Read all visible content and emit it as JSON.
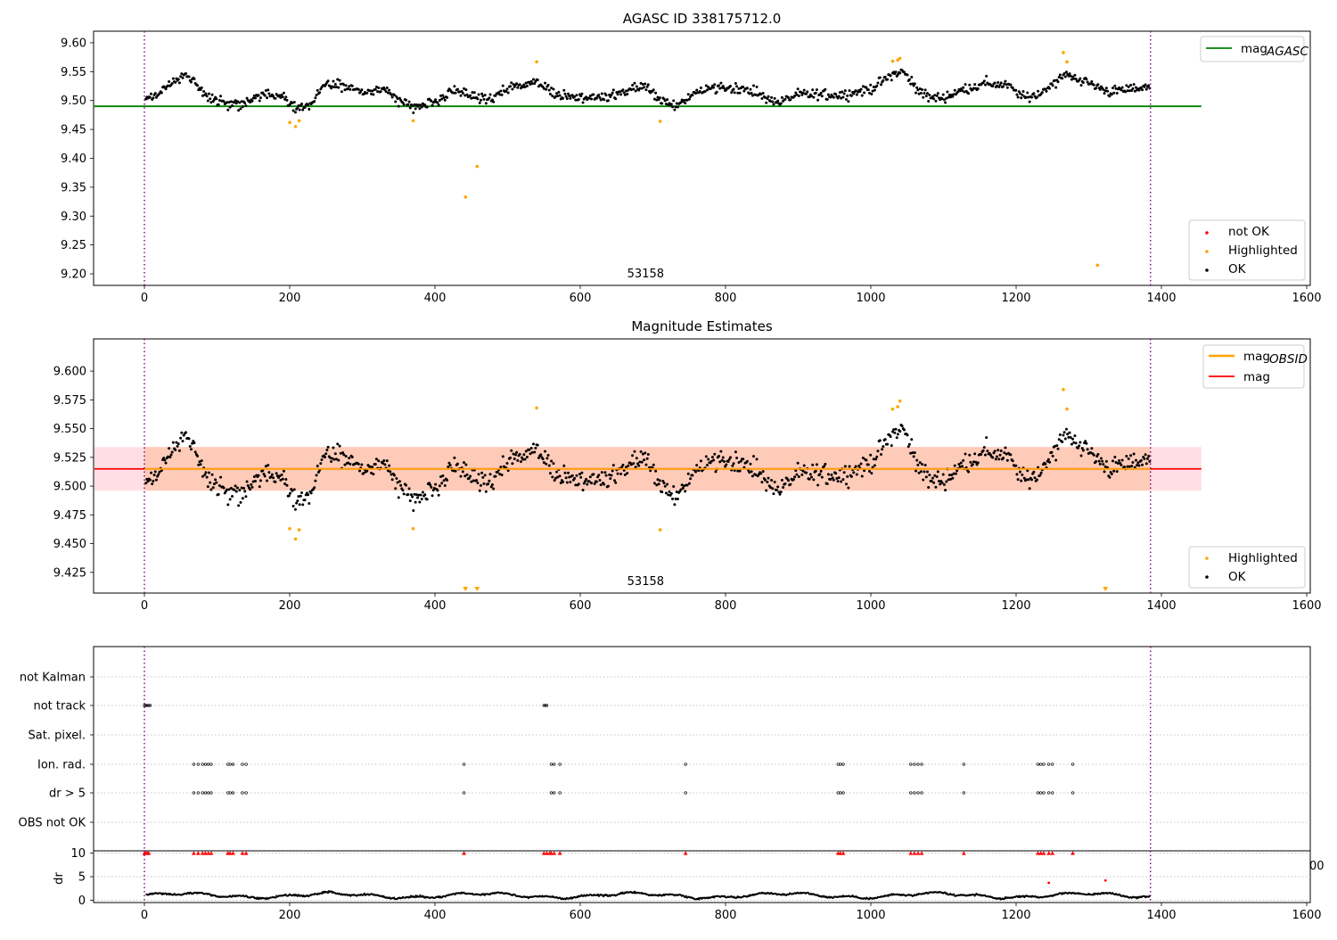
{
  "chart_data": [
    {
      "type": "scatter",
      "title": "AGASC ID 338175712.0",
      "xlim": [
        -70,
        1600
      ],
      "ylim": [
        9.18,
        9.62
      ],
      "xticks": [
        "0",
        "200",
        "400",
        "600",
        "800",
        "1000",
        "1200",
        "1400",
        "1600"
      ],
      "yticks": [
        "9.20",
        "9.25",
        "9.30",
        "9.35",
        "9.40",
        "9.45",
        "9.50",
        "9.55",
        "9.60"
      ],
      "obsid_label": "53158",
      "obsid_x": 690,
      "vlines": [
        0,
        1385
      ],
      "reference_line": {
        "name": "mag",
        "subscript": "AGASC",
        "value": 9.49,
        "x_range": [
          -70,
          1455
        ],
        "color": "#008000"
      },
      "series": [
        {
          "name": "not OK",
          "color": "#ff0000",
          "points": []
        },
        {
          "name": "Highlighted",
          "color": "#ffa500",
          "points": [
            [
              200,
              9.462
            ],
            [
              208,
              9.455
            ],
            [
              213,
              9.465
            ],
            [
              370,
              9.465
            ],
            [
              442,
              9.333
            ],
            [
              458,
              9.386
            ],
            [
              540,
              9.567
            ],
            [
              710,
              9.464
            ],
            [
              1030,
              9.568
            ],
            [
              1037,
              9.57
            ],
            [
              1040,
              9.573
            ],
            [
              1265,
              9.583
            ],
            [
              1270,
              9.567
            ],
            [
              1312,
              9.215
            ]
          ]
        },
        {
          "name": "OK",
          "color": "#000000",
          "description_only_first_points_listed": false
        }
      ],
      "ok_trend": [
        [
          0,
          9.5
        ],
        [
          20,
          9.51
        ],
        [
          40,
          9.535
        ],
        [
          55,
          9.545
        ],
        [
          70,
          9.53
        ],
        [
          90,
          9.505
        ],
        [
          110,
          9.495
        ],
        [
          130,
          9.49
        ],
        [
          160,
          9.51
        ],
        [
          190,
          9.505
        ],
        [
          210,
          9.485
        ],
        [
          230,
          9.495
        ],
        [
          250,
          9.53
        ],
        [
          270,
          9.525
        ],
        [
          300,
          9.515
        ],
        [
          330,
          9.52
        ],
        [
          350,
          9.5
        ],
        [
          370,
          9.49
        ],
        [
          400,
          9.495
        ],
        [
          420,
          9.515
        ],
        [
          440,
          9.51
        ],
        [
          460,
          9.505
        ],
        [
          480,
          9.505
        ],
        [
          500,
          9.52
        ],
        [
          530,
          9.53
        ],
        [
          550,
          9.525
        ],
        [
          570,
          9.51
        ],
        [
          600,
          9.505
        ],
        [
          630,
          9.505
        ],
        [
          660,
          9.515
        ],
        [
          690,
          9.525
        ],
        [
          710,
          9.5
        ],
        [
          730,
          9.49
        ],
        [
          760,
          9.515
        ],
        [
          790,
          9.525
        ],
        [
          820,
          9.52
        ],
        [
          850,
          9.51
        ],
        [
          870,
          9.495
        ],
        [
          900,
          9.51
        ],
        [
          930,
          9.51
        ],
        [
          960,
          9.51
        ],
        [
          980,
          9.515
        ],
        [
          1000,
          9.52
        ],
        [
          1030,
          9.545
        ],
        [
          1045,
          9.55
        ],
        [
          1060,
          9.525
        ],
        [
          1080,
          9.505
        ],
        [
          1100,
          9.505
        ],
        [
          1130,
          9.52
        ],
        [
          1160,
          9.53
        ],
        [
          1190,
          9.525
        ],
        [
          1210,
          9.505
        ],
        [
          1230,
          9.51
        ],
        [
          1250,
          9.53
        ],
        [
          1270,
          9.545
        ],
        [
          1300,
          9.53
        ],
        [
          1330,
          9.515
        ],
        [
          1360,
          9.52
        ],
        [
          1385,
          9.525
        ]
      ],
      "legend_placement_top": "upper right",
      "legend_placement_bottom": "lower right"
    },
    {
      "type": "scatter",
      "title": "Magnitude Estimates",
      "xlim": [
        -70,
        1600
      ],
      "ylim": [
        9.407,
        9.628
      ],
      "xticks": [
        "0",
        "200",
        "400",
        "600",
        "800",
        "1000",
        "1200",
        "1400",
        "1600"
      ],
      "yticks": [
        "9.425",
        "9.450",
        "9.475",
        "9.500",
        "9.525",
        "9.550",
        "9.575",
        "9.600"
      ],
      "obsid_label": "53158",
      "obsid_x": 690,
      "vlines": [
        0,
        1385
      ],
      "mag_line": {
        "name": "mag",
        "value": 9.515,
        "color": "#ff0000"
      },
      "mag_obsid": {
        "name": "mag",
        "subscript": "OBSID",
        "value": 9.515,
        "band": [
          9.496,
          9.534
        ],
        "color": "#ffa500"
      },
      "band_total": [
        9.496,
        9.534
      ],
      "highlighted_points": [
        [
          200,
          9.463
        ],
        [
          208,
          9.454
        ],
        [
          213,
          9.462
        ],
        [
          370,
          9.463
        ],
        [
          540,
          9.568
        ],
        [
          710,
          9.462
        ],
        [
          1030,
          9.567
        ],
        [
          1037,
          9.569
        ],
        [
          1040,
          9.574
        ],
        [
          1265,
          9.584
        ],
        [
          1270,
          9.567
        ]
      ],
      "below_range_markers": [
        442,
        458,
        1323
      ],
      "legend_placement_top": "upper right",
      "legend_placement_bottom": "lower right"
    },
    {
      "type": "scatter",
      "title": "",
      "xlim": [
        -70,
        1600
      ],
      "categories": [
        "not Kalman",
        "not track",
        "Sat. pixel.",
        "Ion. rad.",
        "dr > 5",
        "OBS not OK"
      ],
      "flag_points": {
        "not track": [
          0,
          2,
          4,
          6,
          8,
          550,
          552,
          554
        ],
        "Ion. rad.": [
          68,
          74,
          80,
          84,
          88,
          92,
          115,
          118,
          122,
          135,
          140,
          440,
          560,
          564,
          572,
          745,
          955,
          958,
          962,
          1055,
          1060,
          1065,
          1070,
          1128,
          1230,
          1234,
          1238,
          1245,
          1250,
          1278
        ],
        "dr > 5": [
          68,
          74,
          80,
          84,
          88,
          92,
          115,
          118,
          122,
          135,
          140,
          440,
          560,
          564,
          572,
          745,
          955,
          958,
          962,
          1055,
          1060,
          1065,
          1070,
          1128,
          1230,
          1234,
          1238,
          1245,
          1250,
          1278
        ]
      },
      "vlines": [
        0,
        1385
      ]
    },
    {
      "type": "scatter",
      "title": "",
      "ylabel": "dr",
      "xlim": [
        -70,
        1600
      ],
      "ylim": [
        -0.5,
        10.5
      ],
      "yticks": [
        "0",
        "5",
        "10"
      ],
      "xticks": [
        "0",
        "200",
        "400",
        "600",
        "800",
        "1000",
        "1200",
        "1400",
        "1600"
      ],
      "red_markers_at_10": [
        0,
        2,
        4,
        6,
        68,
        74,
        80,
        84,
        88,
        92,
        115,
        118,
        122,
        135,
        140,
        440,
        550,
        554,
        558,
        560,
        564,
        572,
        745,
        955,
        958,
        962,
        1055,
        1060,
        1065,
        1070,
        1128,
        1230,
        1234,
        1238,
        1245,
        1250,
        1278
      ],
      "red_points": [
        [
          1245,
          3.7
        ],
        [
          1323,
          4.2
        ]
      ],
      "partial_tick_label": "00",
      "vlines": [
        0,
        1385
      ]
    }
  ]
}
